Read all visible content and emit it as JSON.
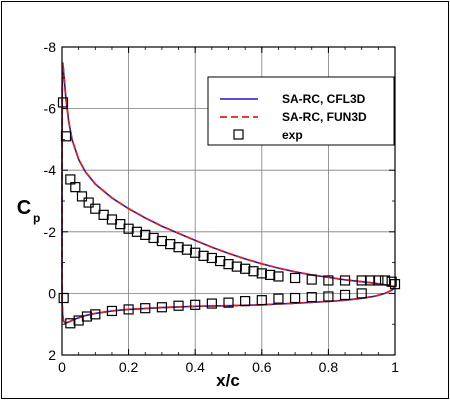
{
  "chart_data": {
    "type": "line",
    "title": "",
    "xlabel": "x/c",
    "ylabel_main": "C",
    "ylabel_sub": "p",
    "xlim": [
      0,
      1
    ],
    "ylim": [
      2,
      -8
    ],
    "y_inverted": true,
    "grid": true,
    "legend_position": "top-right",
    "x_ticks": [
      {
        "v": 0,
        "label": "0"
      },
      {
        "v": 0.2,
        "label": "0.2"
      },
      {
        "v": 0.4,
        "label": "0.4"
      },
      {
        "v": 0.6,
        "label": "0.6"
      },
      {
        "v": 0.8,
        "label": "0.8"
      },
      {
        "v": 1,
        "label": "1"
      }
    ],
    "y_ticks": [
      {
        "v": -8,
        "label": "-8"
      },
      {
        "v": -6,
        "label": "-6"
      },
      {
        "v": -4,
        "label": "-4"
      },
      {
        "v": -2,
        "label": "-2"
      },
      {
        "v": 0,
        "label": "0"
      },
      {
        "v": 2,
        "label": "2"
      }
    ],
    "series": [
      {
        "name": "SA-RC, CFL3D",
        "color": "#1a1acc",
        "style": "solid",
        "points": [
          [
            1.0,
            -0.2
          ],
          [
            0.97,
            -0.28
          ],
          [
            0.94,
            -0.33
          ],
          [
            0.9,
            -0.38
          ],
          [
            0.85,
            -0.44
          ],
          [
            0.8,
            -0.52
          ],
          [
            0.75,
            -0.6
          ],
          [
            0.7,
            -0.7
          ],
          [
            0.65,
            -0.82
          ],
          [
            0.6,
            -0.96
          ],
          [
            0.55,
            -1.12
          ],
          [
            0.5,
            -1.3
          ],
          [
            0.45,
            -1.5
          ],
          [
            0.4,
            -1.72
          ],
          [
            0.35,
            -1.95
          ],
          [
            0.3,
            -2.18
          ],
          [
            0.25,
            -2.45
          ],
          [
            0.2,
            -2.75
          ],
          [
            0.15,
            -3.1
          ],
          [
            0.1,
            -3.55
          ],
          [
            0.07,
            -3.95
          ],
          [
            0.05,
            -4.35
          ],
          [
            0.03,
            -5.0
          ],
          [
            0.02,
            -5.6
          ],
          [
            0.012,
            -6.3
          ],
          [
            0.007,
            -6.9
          ],
          [
            0.004,
            -7.3
          ],
          [
            0.002,
            -7.5
          ],
          [
            0.0008,
            -6.8
          ],
          [
            0.0002,
            -5.0
          ],
          [
            0.0,
            -3.0
          ],
          [
            0.0,
            -0.5
          ],
          [
            0.0004,
            0.3
          ],
          [
            0.002,
            0.7
          ],
          [
            0.005,
            0.9
          ],
          [
            0.01,
            0.97
          ],
          [
            0.02,
            0.93
          ],
          [
            0.04,
            0.83
          ],
          [
            0.07,
            0.72
          ],
          [
            0.1,
            0.65
          ],
          [
            0.15,
            0.57
          ],
          [
            0.2,
            0.52
          ],
          [
            0.3,
            0.46
          ],
          [
            0.4,
            0.42
          ],
          [
            0.5,
            0.4
          ],
          [
            0.6,
            0.37
          ],
          [
            0.7,
            0.32
          ],
          [
            0.8,
            0.26
          ],
          [
            0.85,
            0.22
          ],
          [
            0.9,
            0.16
          ],
          [
            0.94,
            0.09
          ],
          [
            0.97,
            0.0
          ],
          [
            0.99,
            -0.1
          ],
          [
            1.0,
            -0.2
          ]
        ]
      },
      {
        "name": "SA-RC, FUN3D",
        "color": "#e0201a",
        "style": "dashed",
        "points": [
          [
            1.0,
            -0.2
          ],
          [
            0.97,
            -0.28
          ],
          [
            0.94,
            -0.33
          ],
          [
            0.9,
            -0.38
          ],
          [
            0.85,
            -0.44
          ],
          [
            0.8,
            -0.52
          ],
          [
            0.75,
            -0.6
          ],
          [
            0.7,
            -0.7
          ],
          [
            0.65,
            -0.82
          ],
          [
            0.6,
            -0.96
          ],
          [
            0.55,
            -1.12
          ],
          [
            0.5,
            -1.3
          ],
          [
            0.45,
            -1.5
          ],
          [
            0.4,
            -1.72
          ],
          [
            0.35,
            -1.95
          ],
          [
            0.3,
            -2.18
          ],
          [
            0.25,
            -2.45
          ],
          [
            0.2,
            -2.75
          ],
          [
            0.15,
            -3.1
          ],
          [
            0.1,
            -3.55
          ],
          [
            0.07,
            -3.95
          ],
          [
            0.05,
            -4.35
          ],
          [
            0.03,
            -5.0
          ],
          [
            0.02,
            -5.6
          ],
          [
            0.012,
            -6.3
          ],
          [
            0.007,
            -6.9
          ],
          [
            0.004,
            -7.3
          ],
          [
            0.002,
            -7.5
          ],
          [
            0.0008,
            -6.8
          ],
          [
            0.0002,
            -5.0
          ],
          [
            0.0,
            -3.0
          ],
          [
            0.0,
            -0.5
          ],
          [
            0.0004,
            0.3
          ],
          [
            0.002,
            0.7
          ],
          [
            0.005,
            0.9
          ],
          [
            0.01,
            0.97
          ],
          [
            0.02,
            0.93
          ],
          [
            0.04,
            0.83
          ],
          [
            0.07,
            0.72
          ],
          [
            0.1,
            0.65
          ],
          [
            0.15,
            0.57
          ],
          [
            0.2,
            0.52
          ],
          [
            0.3,
            0.46
          ],
          [
            0.4,
            0.42
          ],
          [
            0.5,
            0.4
          ],
          [
            0.6,
            0.37
          ],
          [
            0.7,
            0.32
          ],
          [
            0.8,
            0.26
          ],
          [
            0.85,
            0.22
          ],
          [
            0.9,
            0.16
          ],
          [
            0.94,
            0.09
          ],
          [
            0.97,
            0.0
          ],
          [
            0.99,
            -0.1
          ],
          [
            1.0,
            -0.2
          ]
        ]
      },
      {
        "name": "exp",
        "color": "#000000",
        "style": "marker-square",
        "points": [
          [
            0.003,
            -6.2
          ],
          [
            0.012,
            -5.1
          ],
          [
            0.025,
            -3.7
          ],
          [
            0.04,
            -3.45
          ],
          [
            0.06,
            -3.15
          ],
          [
            0.08,
            -2.95
          ],
          [
            0.1,
            -2.75
          ],
          [
            0.125,
            -2.55
          ],
          [
            0.15,
            -2.4
          ],
          [
            0.175,
            -2.25
          ],
          [
            0.2,
            -2.1
          ],
          [
            0.225,
            -2.0
          ],
          [
            0.25,
            -1.9
          ],
          [
            0.275,
            -1.8
          ],
          [
            0.3,
            -1.7
          ],
          [
            0.325,
            -1.6
          ],
          [
            0.35,
            -1.5
          ],
          [
            0.375,
            -1.42
          ],
          [
            0.4,
            -1.32
          ],
          [
            0.425,
            -1.22
          ],
          [
            0.45,
            -1.15
          ],
          [
            0.475,
            -1.05
          ],
          [
            0.5,
            -0.95
          ],
          [
            0.525,
            -0.87
          ],
          [
            0.55,
            -0.8
          ],
          [
            0.575,
            -0.72
          ],
          [
            0.6,
            -0.65
          ],
          [
            0.625,
            -0.6
          ],
          [
            0.65,
            -0.55
          ],
          [
            0.7,
            -0.5
          ],
          [
            0.75,
            -0.45
          ],
          [
            0.8,
            -0.42
          ],
          [
            0.85,
            -0.42
          ],
          [
            0.9,
            -0.42
          ],
          [
            0.925,
            -0.42
          ],
          [
            0.95,
            -0.42
          ],
          [
            0.97,
            -0.42
          ],
          [
            0.99,
            -0.38
          ],
          [
            1.0,
            -0.3
          ],
          [
            0.005,
            0.15
          ],
          [
            0.025,
            0.97
          ],
          [
            0.05,
            0.88
          ],
          [
            0.075,
            0.75
          ],
          [
            0.1,
            0.68
          ],
          [
            0.15,
            0.57
          ],
          [
            0.2,
            0.52
          ],
          [
            0.25,
            0.48
          ],
          [
            0.3,
            0.45
          ],
          [
            0.35,
            0.4
          ],
          [
            0.4,
            0.37
          ],
          [
            0.45,
            0.33
          ],
          [
            0.5,
            0.3
          ],
          [
            0.55,
            0.25
          ],
          [
            0.6,
            0.22
          ],
          [
            0.65,
            0.17
          ],
          [
            0.7,
            0.15
          ],
          [
            0.75,
            0.12
          ],
          [
            0.8,
            0.1
          ],
          [
            0.85,
            0.05
          ],
          [
            0.9,
            0.0
          ]
        ]
      }
    ]
  }
}
